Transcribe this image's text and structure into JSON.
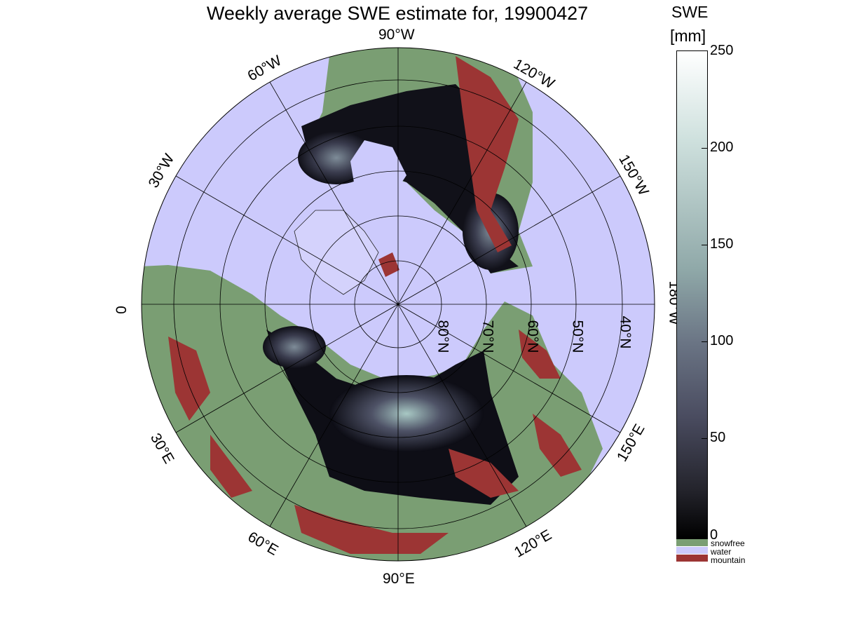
{
  "title": "Weekly average SWE estimate for, 19900427",
  "longitude_labels": [
    "90°W",
    "60°W",
    "120°W",
    "30°W",
    "150°W",
    "0",
    "180°W",
    "30°E",
    "150°E",
    "60°E",
    "120°E",
    "90°E"
  ],
  "latitude_labels": [
    "80°N",
    "70°N",
    "60°N",
    "50°N",
    "40°N"
  ],
  "colorbar": {
    "title": "SWE",
    "unit": "[mm]",
    "ticks": [
      "250",
      "200",
      "150",
      "100",
      "50",
      "0"
    ],
    "range": [
      0,
      250
    ]
  },
  "legend": [
    {
      "label": "snowfree",
      "color": "#7a9e73"
    },
    {
      "label": "water",
      "color": "#cccafc"
    },
    {
      "label": "mountain",
      "color": "#9c3534"
    }
  ],
  "colors": {
    "water": "#cccafc",
    "snowfree": "#7a9e73",
    "mountain": "#9c3534",
    "snow_low": "#0a0a10",
    "snow_mid": "#4a4c60",
    "snow_high": "#b8d4d0"
  }
}
